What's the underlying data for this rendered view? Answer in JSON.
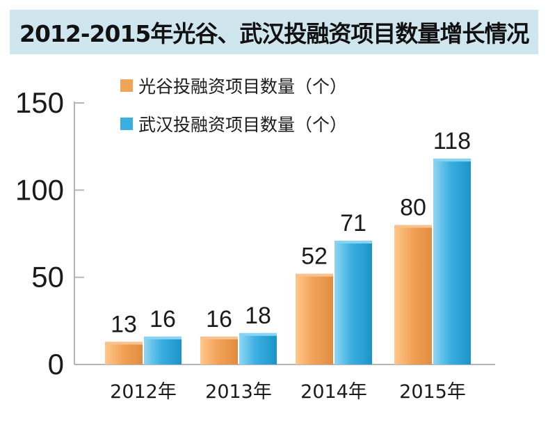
{
  "title": "2012-2015年光谷、武汉投融资项目数量增长情况",
  "chart_data": {
    "type": "bar",
    "title": "2012-2015年光谷、武汉投融资项目数量增长情况",
    "categories": [
      "2012年",
      "2013年",
      "2014年",
      "2015年"
    ],
    "series": [
      {
        "name": "光谷投融资项目数量（个）",
        "values": [
          13,
          16,
          52,
          80
        ],
        "color": "#f2a35a"
      },
      {
        "name": "武汉投融资项目数量（个）",
        "values": [
          16,
          18,
          71,
          118
        ],
        "color": "#3aafe0"
      }
    ],
    "ylim": [
      0,
      150
    ],
    "yticks": [
      "0",
      "50",
      "100",
      "150"
    ],
    "grid": false,
    "legend_position": "top-left"
  }
}
